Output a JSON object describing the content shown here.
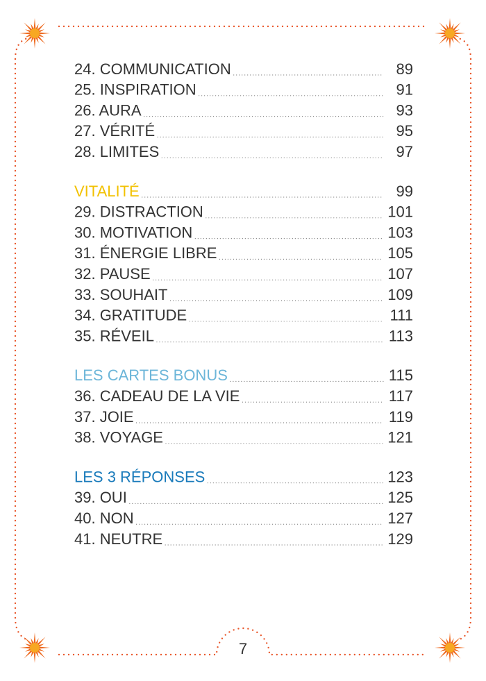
{
  "sections": [
    {
      "entries": [
        {
          "label": "24. COMMUNICATION",
          "page": 89
        },
        {
          "label": "25. INSPIRATION",
          "page": 91
        },
        {
          "label": "26. AURA",
          "page": 93
        },
        {
          "label": "27. VÉRITÉ",
          "page": 95
        },
        {
          "label": "28. LIMITES",
          "page": 97
        }
      ]
    },
    {
      "heading": {
        "title": "VITALITÉ",
        "page": 99,
        "color": "#f2c100"
      },
      "entries": [
        {
          "label": "29. DISTRACTION",
          "page": 101
        },
        {
          "label": "30. MOTIVATION",
          "page": 103
        },
        {
          "label": "31.  ÉNERGIE LIBRE",
          "page": 105
        },
        {
          "label": "32. PAUSE",
          "page": 107
        },
        {
          "label": "33. SOUHAIT",
          "page": 109
        },
        {
          "label": "34. GRATITUDE",
          "page": 111
        },
        {
          "label": "35. RÉVEIL",
          "page": 113
        }
      ]
    },
    {
      "heading": {
        "title": "LES CARTES BONUS",
        "page": 115,
        "color": "#6db6d9"
      },
      "entries": [
        {
          "label": "36. CADEAU DE LA VIE",
          "page": 117
        },
        {
          "label": "37.  JOIE",
          "page": 119
        },
        {
          "label": "38. VOYAGE",
          "page": 121
        }
      ]
    },
    {
      "heading": {
        "title": "LES 3 RÉPONSES",
        "page": 123,
        "color": "#1a7bbb"
      },
      "entries": [
        {
          "label": "39. OUI",
          "page": 125
        },
        {
          "label": "40. NON",
          "page": 127
        },
        {
          "label": "41.  NEUTRE",
          "page": 129
        }
      ]
    }
  ],
  "page_number": 7
}
